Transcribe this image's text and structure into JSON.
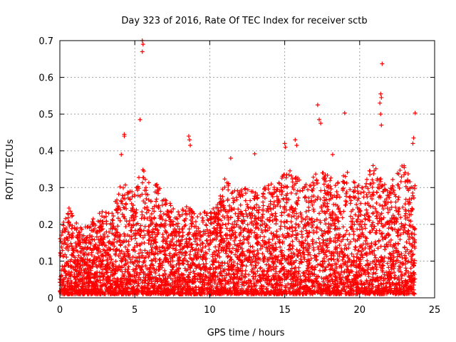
{
  "chart_data": {
    "type": "scatter",
    "title": "Day 323 of 2016, Rate Of TEC Index for receiver sctb",
    "xlabel": "GPS time / hours",
    "ylabel": "ROTI / TECUs",
    "xlim": [
      0,
      25
    ],
    "ylim": [
      0,
      0.7
    ],
    "x_ticks": [
      "0",
      "5",
      "10",
      "15",
      "20",
      "25"
    ],
    "y_ticks": [
      "0",
      "0.1",
      "0.2",
      "0.3",
      "0.4",
      "0.5",
      "0.6",
      "0.7"
    ],
    "x_tick_values": [
      0,
      5,
      10,
      15,
      20,
      25
    ],
    "y_tick_values": [
      0,
      0.1,
      0.2,
      0.3,
      0.4,
      0.5,
      0.6,
      0.7
    ],
    "grid": true,
    "marker": "+",
    "color": "#ff0000",
    "x_range_of_data": [
      0,
      23.7
    ],
    "envelope": {
      "x": [
        0,
        0.5,
        1,
        1.5,
        2,
        2.5,
        3,
        3.5,
        4,
        4.5,
        5,
        5.5,
        6,
        6.5,
        7,
        7.5,
        8,
        8.5,
        9,
        9.5,
        10,
        10.5,
        11,
        11.5,
        12,
        12.5,
        13,
        13.5,
        14,
        14.5,
        15,
        15.5,
        16,
        16.5,
        17,
        17.5,
        18,
        18.5,
        19,
        19.5,
        20,
        20.5,
        21,
        21.5,
        22,
        22.5,
        23,
        23.5
      ],
      "y_max_typical": [
        0.15,
        0.25,
        0.2,
        0.18,
        0.2,
        0.22,
        0.23,
        0.22,
        0.3,
        0.3,
        0.28,
        0.35,
        0.3,
        0.3,
        0.27,
        0.25,
        0.22,
        0.25,
        0.22,
        0.23,
        0.22,
        0.25,
        0.32,
        0.3,
        0.28,
        0.3,
        0.28,
        0.3,
        0.3,
        0.3,
        0.33,
        0.35,
        0.32,
        0.3,
        0.33,
        0.33,
        0.33,
        0.3,
        0.35,
        0.32,
        0.3,
        0.33,
        0.36,
        0.32,
        0.3,
        0.33,
        0.36,
        0.3
      ]
    },
    "outliers": [
      {
        "x": 5.5,
        "y": 0.7
      },
      {
        "x": 5.55,
        "y": 0.69
      },
      {
        "x": 5.5,
        "y": 0.67
      },
      {
        "x": 5.35,
        "y": 0.485
      },
      {
        "x": 4.3,
        "y": 0.445
      },
      {
        "x": 4.3,
        "y": 0.44
      },
      {
        "x": 8.6,
        "y": 0.44
      },
      {
        "x": 8.65,
        "y": 0.43
      },
      {
        "x": 8.7,
        "y": 0.415
      },
      {
        "x": 17.2,
        "y": 0.525
      },
      {
        "x": 17.3,
        "y": 0.485
      },
      {
        "x": 17.4,
        "y": 0.475
      },
      {
        "x": 19.0,
        "y": 0.503
      },
      {
        "x": 21.5,
        "y": 0.637
      },
      {
        "x": 21.4,
        "y": 0.555
      },
      {
        "x": 21.45,
        "y": 0.545
      },
      {
        "x": 21.35,
        "y": 0.53
      },
      {
        "x": 21.4,
        "y": 0.5
      },
      {
        "x": 21.45,
        "y": 0.47
      },
      {
        "x": 23.7,
        "y": 0.503
      },
      {
        "x": 23.6,
        "y": 0.435
      },
      {
        "x": 23.55,
        "y": 0.42
      },
      {
        "x": 15.0,
        "y": 0.42
      },
      {
        "x": 15.05,
        "y": 0.41
      },
      {
        "x": 15.7,
        "y": 0.43
      },
      {
        "x": 15.8,
        "y": 0.415
      },
      {
        "x": 13.0,
        "y": 0.392
      },
      {
        "x": 4.1,
        "y": 0.39
      },
      {
        "x": 11.4,
        "y": 0.38
      },
      {
        "x": 18.2,
        "y": 0.39
      }
    ]
  }
}
